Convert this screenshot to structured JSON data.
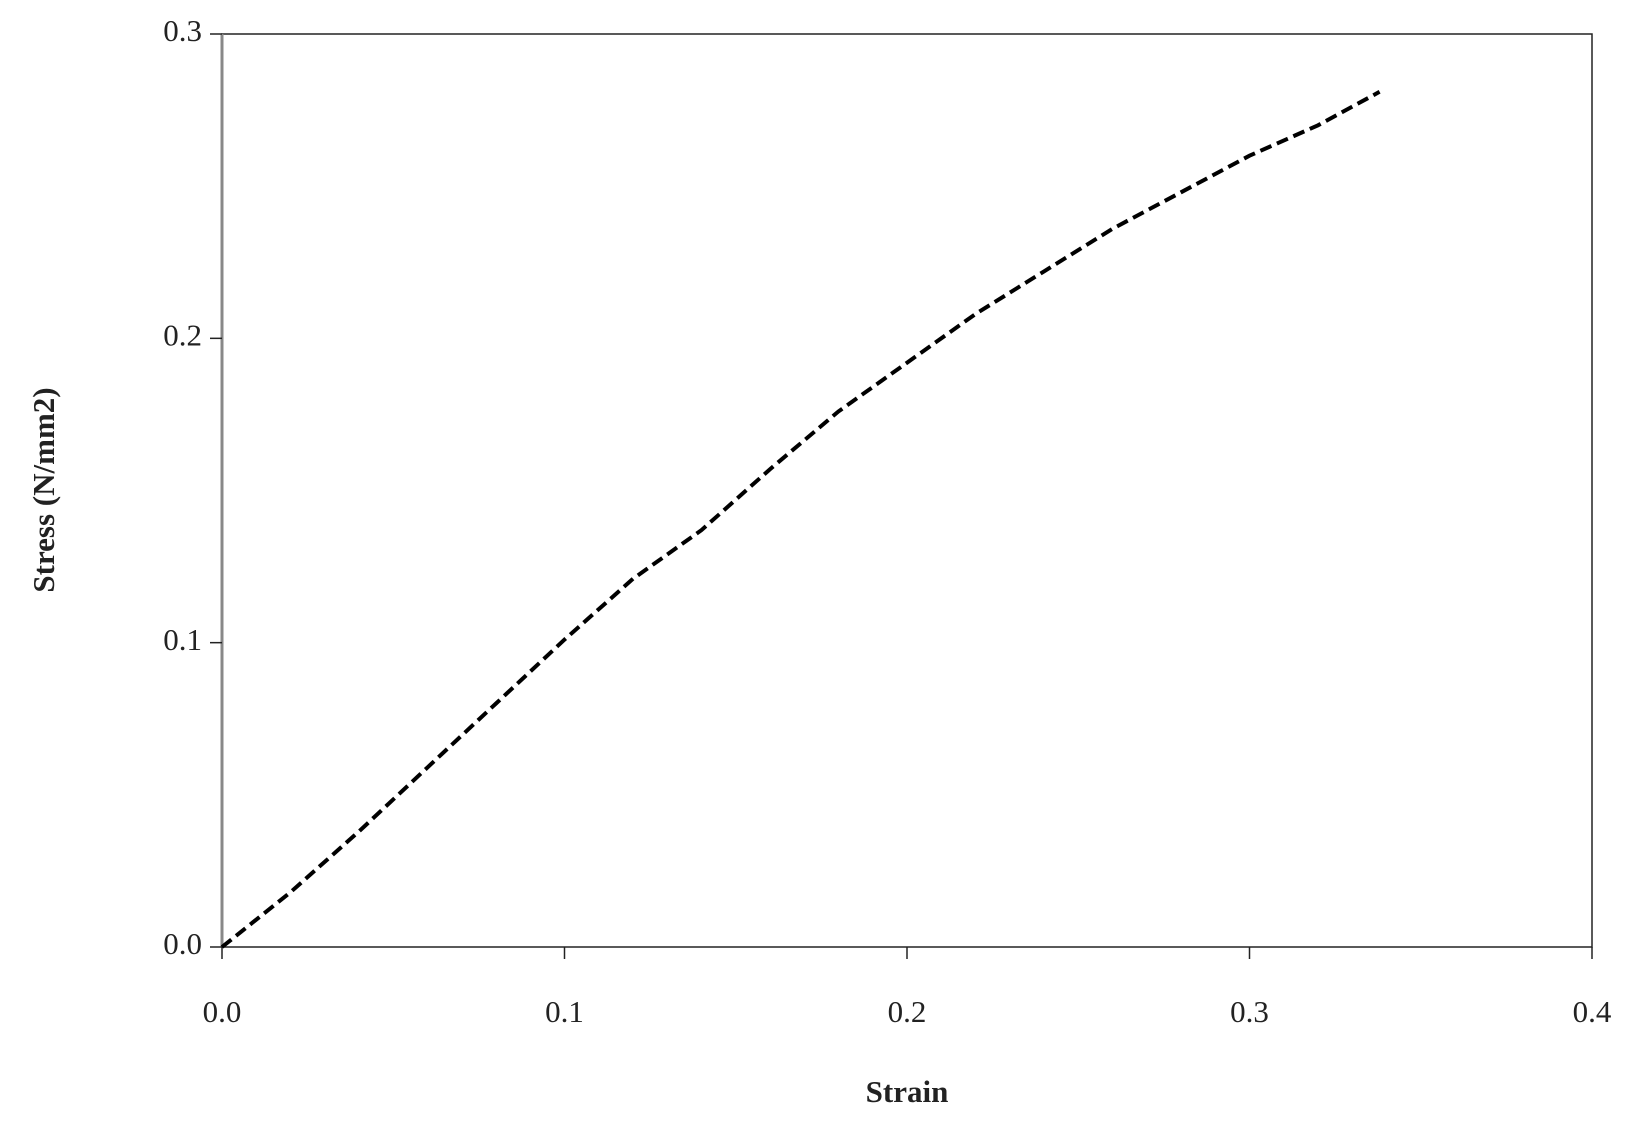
{
  "chart_data": {
    "type": "line",
    "x_label": "Strain",
    "y_label": "Stress (N/mm2)",
    "x": [
      0,
      0.02,
      0.04,
      0.06,
      0.08,
      0.1,
      0.12,
      0.14,
      0.16,
      0.18,
      0.2,
      0.22,
      0.24,
      0.26,
      0.28,
      0.3,
      0.32,
      0.338
    ],
    "values": [
      0,
      0.018,
      0.038,
      0.059,
      0.08,
      0.101,
      0.121,
      0.137,
      0.157,
      0.176,
      0.192,
      0.208,
      0.222,
      0.236,
      0.248,
      0.26,
      0.27,
      0.281
    ],
    "color": "#000000",
    "dashed": true,
    "xlim": [
      0,
      0.4
    ],
    "ylim": [
      0,
      0.3
    ],
    "xticks": [
      {
        "value": 0,
        "label": "0.0"
      },
      0.1,
      0.2,
      0.3,
      0.4
    ],
    "yticks": [
      {
        "value": 0,
        "label": "0.0"
      },
      0.1,
      0.2,
      0.3
    ],
    "grid": false
  }
}
